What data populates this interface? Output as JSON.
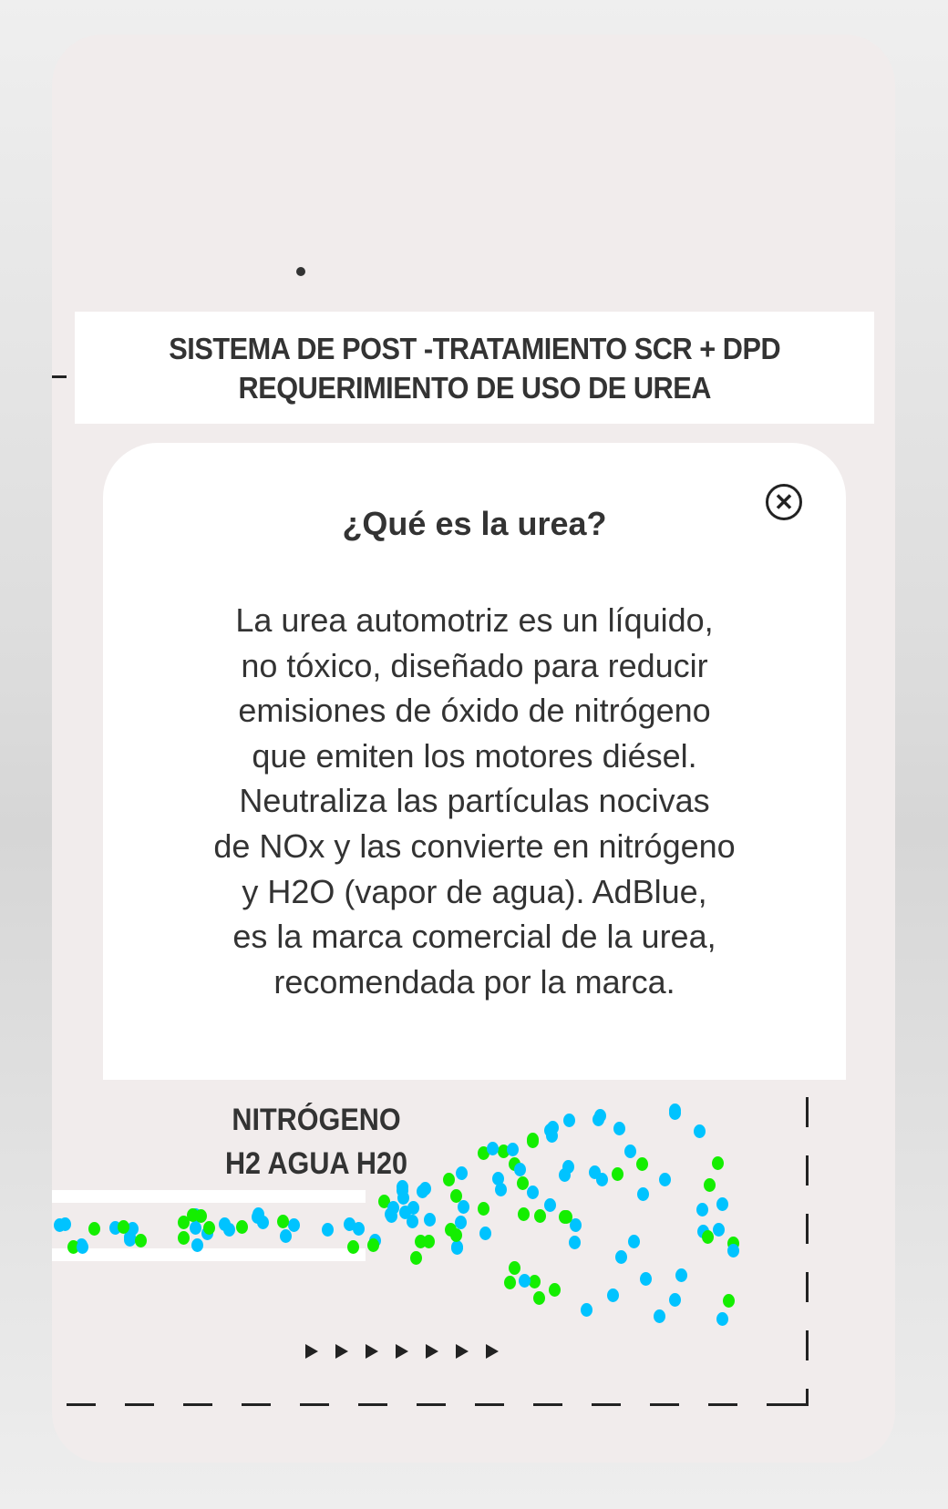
{
  "header": {
    "line1": "SISTEMA DE POST -TRATAMIENTO SCR + DPD",
    "line2": "REQUERIMIENTO DE USO DE UREA"
  },
  "modal": {
    "title": "¿Qué es la urea?",
    "close_icon": "close-circle-icon",
    "close_glyph": "✕",
    "body": [
      "La urea automotriz es un líquido,",
      "no tóxico, diseñado para reducir",
      "emisiones de óxido de nitrógeno",
      "que emiten los motores diésel.",
      "Neutraliza las partículas nocivas",
      "de NOx y las convierte en nitrógeno",
      "y H2O (vapor de agua). AdBlue,",
      "es la marca comercial de la urea,",
      "recomendada por la marca."
    ]
  },
  "diagram": {
    "label1": "NITRÓGENO",
    "label2": "H2 AGUA H20",
    "particle_colors": [
      "#00c3ff",
      "#14ee00"
    ],
    "arrow_count": 7
  }
}
